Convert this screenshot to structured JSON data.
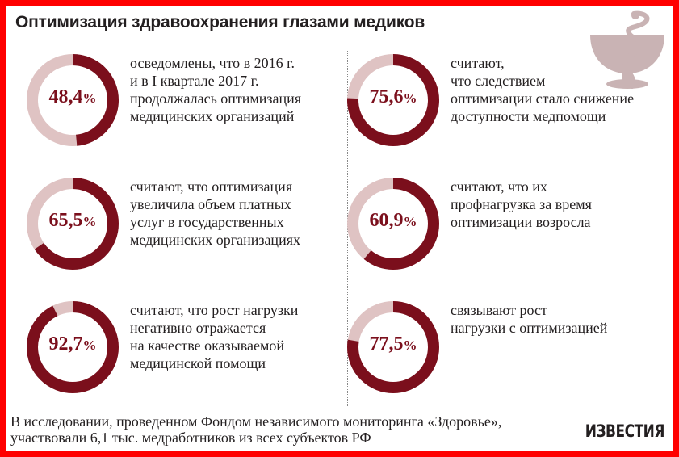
{
  "title": "Оптимизация здравоохранения глазами медиков",
  "brand": "ИЗВЕСТИЯ",
  "footnote": {
    "line1": "В исследовании, проведенном Фондом независимого мониторинга «Здоровье»,",
    "line2": "участвовали 6,1 тыс. медработников из всех субъектов РФ"
  },
  "colors": {
    "accent": "#7b0f1c",
    "remainder": "#dfc3c3",
    "frame": "#ff0000",
    "icon": "#c9b3b4"
  },
  "icons": {
    "logo": "bowl-of-hygieia-icon"
  },
  "chart_data": {
    "type": "pie",
    "subtype": "donut",
    "title": "Оптимизация здравоохранения глазами медиков",
    "unit": "%",
    "items": [
      {
        "value": 48.4,
        "label": "48,4",
        "text": [
          "осведомлены, что в 2016 г.",
          "и в I квартале 2017 г.",
          "продолжалась оптимизация",
          "медицинских организаций"
        ]
      },
      {
        "value": 65.5,
        "label": "65,5",
        "text": [
          "считают, что оптимизация",
          "увеличила объем платных",
          "услуг в государственных",
          "медицинских организациях"
        ]
      },
      {
        "value": 92.7,
        "label": "92,7",
        "text": [
          "считают, что рост нагрузки",
          "негативно отражается",
          "на качестве оказываемой",
          "медицинской помощи"
        ]
      },
      {
        "value": 75.6,
        "label": "75,6",
        "text": [
          "считают,",
          "что следствием",
          "оптимизации стало снижение",
          "доступности медпомощи"
        ]
      },
      {
        "value": 60.9,
        "label": "60,9",
        "text": [
          "считают, что их",
          "профнагрузка за время",
          "оптимизации возросла"
        ]
      },
      {
        "value": 77.5,
        "label": "77,5",
        "text": [
          "связывают рост",
          "нагрузки с оптимизацией"
        ]
      }
    ]
  }
}
